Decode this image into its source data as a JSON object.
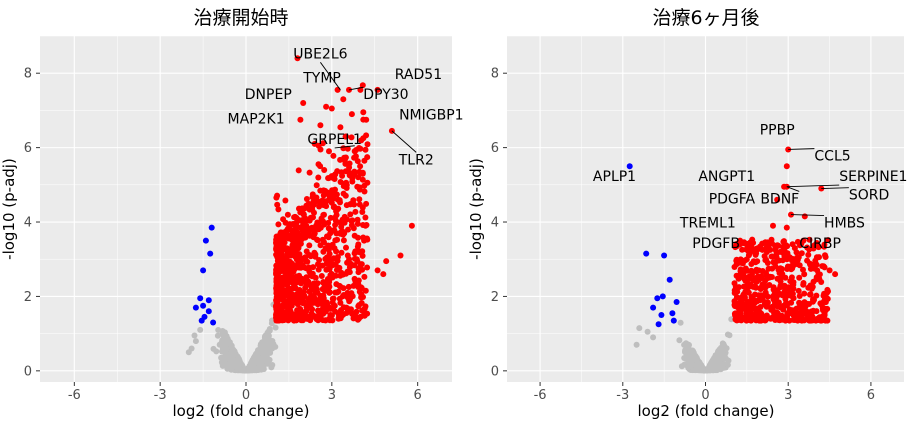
{
  "chart_data": [
    {
      "type": "scatter",
      "title": "治療開始時",
      "xlabel": "log2 (fold change)",
      "ylabel": "-log10 (p-adj)",
      "xlim": [
        -7.2,
        7.2
      ],
      "ylim": [
        -0.3,
        9.0
      ],
      "xticks": [
        -6,
        -3,
        0,
        3,
        6
      ],
      "yticks": [
        0,
        2,
        4,
        6,
        8
      ],
      "grid": true,
      "colors": {
        "background": "#ebebeb",
        "grid": "#ffffff",
        "ns": "#bebebe",
        "up": "#ff0000",
        "down": "#0000ff"
      },
      "series": [
        {
          "key": "down",
          "color": "#0000ff",
          "points": [
            [
              -1.2,
              3.85
            ],
            [
              -1.4,
              3.5
            ],
            [
              -1.25,
              3.15
            ],
            [
              -1.5,
              2.7
            ],
            [
              -1.3,
              1.9
            ],
            [
              -1.5,
              1.75
            ],
            [
              -1.6,
              1.95
            ],
            [
              -1.75,
              1.7
            ],
            [
              -1.3,
              1.6
            ],
            [
              -1.45,
              1.45
            ],
            [
              -1.15,
              1.3
            ],
            [
              -1.55,
              1.35
            ]
          ]
        },
        {
          "key": "ns",
          "color": "#bebebe",
          "cloud": true,
          "count": 1000,
          "points": [
            [
              -1.8,
              0.95
            ],
            [
              -1.75,
              0.8
            ],
            [
              -1.9,
              0.6
            ],
            [
              -2.0,
              0.5
            ],
            [
              -1.6,
              1.1
            ]
          ]
        },
        {
          "key": "up",
          "color": "#ff0000",
          "cloud": true,
          "count": 1000,
          "points": [
            [
              1.8,
              8.4
            ],
            [
              3.2,
              7.55
            ],
            [
              3.6,
              7.55
            ],
            [
              4.0,
              7.55
            ],
            [
              4.6,
              7.55
            ],
            [
              3.4,
              7.3
            ],
            [
              2.0,
              7.2
            ],
            [
              2.8,
              7.1
            ],
            [
              4.1,
              6.95
            ],
            [
              3.0,
              7.05
            ],
            [
              1.9,
              6.75
            ],
            [
              3.7,
              6.9
            ],
            [
              2.6,
              6.6
            ],
            [
              3.3,
              6.55
            ],
            [
              4.2,
              6.75
            ],
            [
              5.1,
              6.45
            ],
            [
              3.5,
              6.3
            ],
            [
              2.4,
              6.1
            ],
            [
              2.9,
              5.9
            ],
            [
              3.8,
              5.9
            ],
            [
              5.8,
              3.9
            ],
            [
              5.4,
              3.1
            ],
            [
              4.9,
              2.95
            ],
            [
              4.8,
              2.6
            ],
            [
              4.6,
              2.7
            ]
          ]
        }
      ],
      "annotations": [
        {
          "label": "UBE2L6",
          "x": 2.6,
          "y": 8.4
        },
        {
          "label": "TYMP",
          "x": 2.0,
          "y": 7.75
        },
        {
          "label": "RAD51",
          "x": 5.2,
          "y": 7.85
        },
        {
          "label": "DNPEP",
          "x": 1.6,
          "y": 7.3
        },
        {
          "label": "DPY30",
          "x": 4.1,
          "y": 7.3
        },
        {
          "label": "MAP2K1",
          "x": 1.35,
          "y": 6.65
        },
        {
          "label": "NMIGBP1",
          "x": 5.35,
          "y": 6.75
        },
        {
          "label": "GRPEL1",
          "x": 3.1,
          "y": 6.1
        },
        {
          "label": "TLR2",
          "x": 5.95,
          "y": 5.55
        }
      ]
    },
    {
      "type": "scatter",
      "title": "治療6ヶ月後",
      "xlabel": "log2 (fold change)",
      "ylabel": "-log10 (p-adj)",
      "xlim": [
        -7.2,
        7.2
      ],
      "ylim": [
        -0.3,
        9.0
      ],
      "xticks": [
        -6,
        -3,
        0,
        3,
        6
      ],
      "yticks": [
        0,
        2,
        4,
        6,
        8
      ],
      "grid": true,
      "colors": {
        "background": "#ebebeb",
        "grid": "#ffffff",
        "ns": "#bebebe",
        "up": "#ff0000",
        "down": "#0000ff"
      },
      "series": [
        {
          "key": "down",
          "color": "#0000ff",
          "points": [
            [
              -2.75,
              5.5
            ],
            [
              -2.15,
              3.15
            ],
            [
              -1.5,
              3.1
            ],
            [
              -1.3,
              2.45
            ],
            [
              -1.55,
              2.0
            ],
            [
              -1.75,
              1.95
            ],
            [
              -1.05,
              1.85
            ],
            [
              -1.9,
              1.7
            ],
            [
              -1.2,
              1.55
            ],
            [
              -1.6,
              1.5
            ],
            [
              -1.15,
              1.35
            ],
            [
              -1.7,
              1.25
            ]
          ]
        },
        {
          "key": "ns",
          "color": "#bebebe",
          "cloud": true,
          "count": 700,
          "points": [
            [
              -2.4,
              1.15
            ],
            [
              -2.1,
              1.05
            ],
            [
              -2.5,
              0.7
            ],
            [
              -1.9,
              0.9
            ]
          ]
        },
        {
          "key": "up",
          "color": "#ff0000",
          "cloud": true,
          "count": 520,
          "points": [
            [
              3.0,
              5.95
            ],
            [
              2.95,
              5.5
            ],
            [
              2.85,
              4.95
            ],
            [
              2.95,
              4.95
            ],
            [
              4.2,
              4.9
            ],
            [
              2.6,
              4.6
            ],
            [
              3.1,
              4.2
            ],
            [
              3.6,
              4.15
            ],
            [
              2.45,
              3.9
            ],
            [
              2.95,
              3.85
            ],
            [
              3.55,
              3.5
            ],
            [
              2.35,
              3.25
            ],
            [
              3.0,
              3.05
            ],
            [
              4.5,
              2.7
            ],
            [
              4.7,
              2.6
            ],
            [
              4.1,
              2.6
            ]
          ]
        }
      ],
      "annotations": [
        {
          "label": "PPBP",
          "x": 2.6,
          "y": 6.35
        },
        {
          "label": "CCL5",
          "x": 3.95,
          "y": 5.65
        },
        {
          "label": "APLP1",
          "x": -3.3,
          "y": 5.1
        },
        {
          "label": "ANGPT1",
          "x": 1.8,
          "y": 5.1
        },
        {
          "label": "SERPINE1",
          "x": 4.85,
          "y": 5.1
        },
        {
          "label": "SORD",
          "x": 5.2,
          "y": 4.6
        },
        {
          "label": "PDGFA",
          "x": 1.8,
          "y": 4.5
        },
        {
          "label": "BDNF",
          "x": 3.4,
          "y": 4.5
        },
        {
          "label": "HMBS",
          "x": 4.3,
          "y": 3.85
        },
        {
          "label": "TREML1",
          "x": 1.1,
          "y": 3.85
        },
        {
          "label": "PDGFB",
          "x": 1.25,
          "y": 3.3
        },
        {
          "label": "CIRBP",
          "x": 3.4,
          "y": 3.3
        }
      ]
    }
  ]
}
